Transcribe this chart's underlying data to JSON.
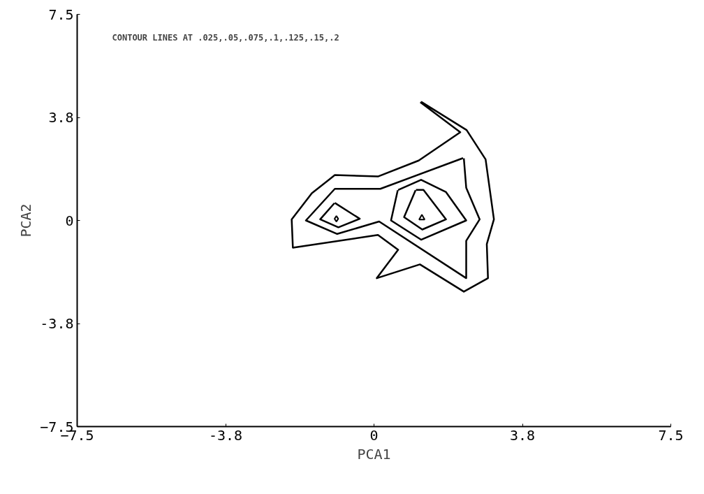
{
  "chart_data": {
    "type": "line",
    "xlabel": "PCA1",
    "ylabel": "PCA2",
    "annotations": [
      "CONTOUR LINES AT .025,.05,.075,.1,.125,.15,.2"
    ],
    "xlim": [
      -7.5,
      7.5
    ],
    "ylim": [
      -7.5,
      7.5
    ],
    "xticks": [
      -7.5,
      {
        "value": -3.75,
        "label": "-3.8"
      },
      0,
      {
        "value": 3.75,
        "label": "3.8"
      },
      7.5
    ],
    "yticks": [
      -7.5,
      {
        "value": -3.75,
        "label": "-3.8"
      },
      0,
      {
        "value": 3.75,
        "label": "3.8"
      },
      7.5
    ],
    "grid": false,
    "series": [
      {
        "color": "#000000",
        "x": [
          1.19,
          2.34,
          2.82,
          3.03,
          2.85,
          2.88,
          2.27,
          1.16,
          0.07,
          0.61,
          0.1,
          -2.05,
          -2.08,
          -1.57,
          -0.99,
          0.1,
          1.13,
          2.18,
          1.17
        ],
        "values": [
          4.32,
          3.29,
          2.22,
          0.04,
          -0.86,
          -2.1,
          -2.59,
          -1.6,
          -2.1,
          -1.07,
          -0.53,
          -0.99,
          0.04,
          0.99,
          1.65,
          1.6,
          2.18,
          3.21,
          4.3
        ]
      },
      {
        "color": "#000000",
        "x": [
          2.27,
          2.33,
          2.67,
          2.33,
          2.33,
          0.13,
          -0.93,
          -1.72,
          -0.99,
          0.16,
          2.25
        ],
        "values": [
          2.26,
          1.19,
          0.04,
          -0.74,
          -2.1,
          -0.04,
          -0.49,
          0.0,
          1.15,
          1.15,
          2.27
        ]
      },
      {
        "color": "#000000",
        "x": [
          -0.99,
          -0.36,
          -0.9,
          -1.36,
          -1.0
        ],
        "values": [
          0.64,
          0.06,
          -0.25,
          0.04,
          0.63
        ]
      },
      {
        "color": "#000000",
        "x": [
          0.61,
          1.19,
          1.82,
          2.33,
          1.19,
          0.43,
          0.6
        ],
        "values": [
          1.11,
          1.48,
          1.03,
          0.0,
          -0.7,
          0.0,
          1.1
        ]
      },
      {
        "color": "#000000",
        "x": [
          1.06,
          1.25,
          1.82,
          1.22,
          0.76,
          1.05
        ],
        "values": [
          1.11,
          1.11,
          0.04,
          -0.33,
          0.12,
          1.1
        ]
      },
      {
        "type": "scatter",
        "marker": "diamond",
        "color": "#000000",
        "x": [
          -0.95
        ],
        "values": [
          0.06
        ]
      },
      {
        "type": "scatter",
        "marker": "triangle",
        "color": "#000000",
        "x": [
          1.21
        ],
        "values": [
          0.09
        ]
      }
    ]
  }
}
